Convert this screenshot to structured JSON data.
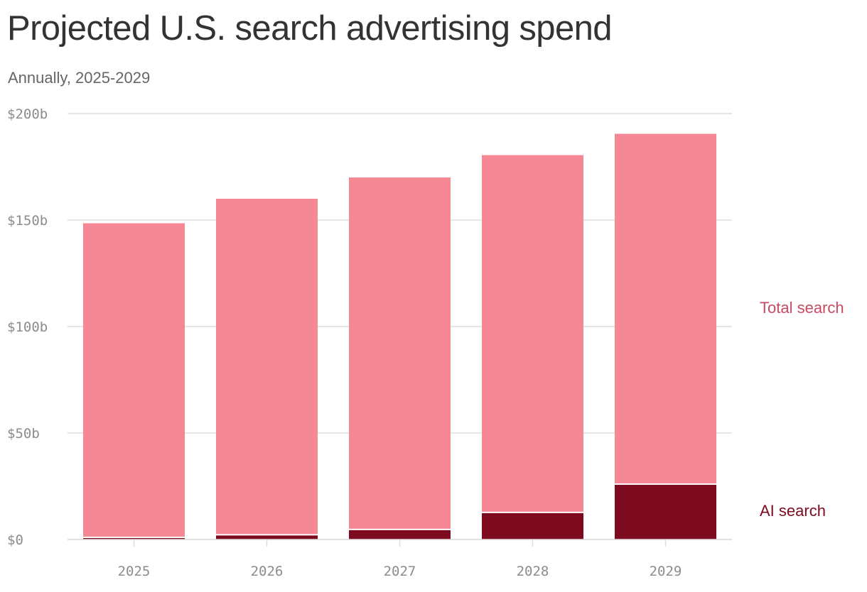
{
  "title": "Projected U.S. search advertising spend",
  "subtitle": "Annually, 2025-2029",
  "colors": {
    "total": "#f68896",
    "ai": "#7e0a20",
    "total_label": "#c64b63",
    "ai_label": "#7e0a20",
    "grid": "#dddddd",
    "tick_text": "#8c8c8c"
  },
  "chart_data": {
    "type": "bar",
    "stacked": true,
    "categories": [
      "2025",
      "2026",
      "2027",
      "2028",
      "2029"
    ],
    "series": [
      {
        "name": "AI search",
        "values": [
          1.0,
          2.2,
          4.7,
          12.7,
          26.0
        ]
      },
      {
        "name": "Total search",
        "values": [
          148.5,
          160.0,
          170.0,
          180.5,
          190.5
        ]
      }
    ],
    "series_note_total_includes_ai": true,
    "ylim": [
      0,
      200
    ],
    "yticks": [
      0,
      50,
      100,
      150,
      200
    ],
    "ytick_labels": [
      "$0",
      "$50b",
      "$100b",
      "$150b",
      "$200b"
    ],
    "xlabel": "",
    "ylabel": "",
    "grid": true,
    "legend": "direct labels, right"
  }
}
